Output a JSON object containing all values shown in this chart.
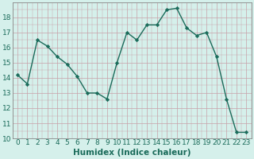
{
  "x": [
    0,
    1,
    2,
    3,
    4,
    5,
    6,
    7,
    8,
    9,
    10,
    11,
    12,
    13,
    14,
    15,
    16,
    17,
    18,
    19,
    20,
    21,
    22,
    23
  ],
  "y": [
    14.2,
    13.6,
    16.5,
    16.1,
    15.4,
    14.9,
    14.1,
    13.0,
    13.0,
    12.6,
    15.0,
    17.0,
    16.5,
    17.5,
    17.5,
    18.5,
    18.6,
    17.3,
    16.8,
    17.0,
    15.4,
    12.6,
    10.4,
    10.4
  ],
  "line_color": "#1a6b5a",
  "marker": "D",
  "marker_size": 2.2,
  "bg_color": "#d5f0eb",
  "grid_major_color": "#c8d8d4",
  "grid_minor_color": "#e0eeea",
  "xlabel": "Humidex (Indice chaleur)",
  "xlim": [
    -0.5,
    23.5
  ],
  "ylim": [
    10,
    19
  ],
  "ytick_values": [
    10,
    11,
    12,
    13,
    14,
    15,
    16,
    17,
    18
  ],
  "tick_fontsize": 6.5,
  "label_fontsize": 7.5,
  "linewidth": 1.0
}
